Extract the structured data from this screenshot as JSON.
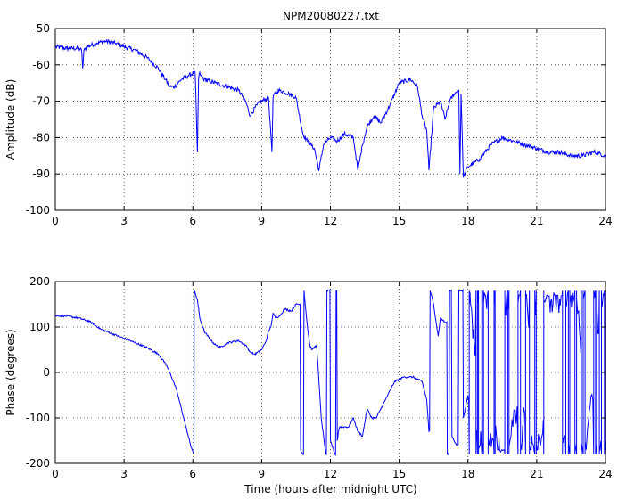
{
  "chart_data": [
    {
      "type": "line",
      "title": "NPM20080227.txt",
      "xlabel": "",
      "ylabel": "Amplitude (dB)",
      "xlim": [
        0,
        24
      ],
      "ylim": [
        -100,
        -50
      ],
      "xticks": [
        "0",
        "3",
        "6",
        "9",
        "12",
        "15",
        "18",
        "21",
        "24"
      ],
      "yticks": [
        "-50",
        "-60",
        "-70",
        "-80",
        "-90",
        "-100"
      ],
      "grid": true,
      "color": "#0000ff",
      "noise": 0.6,
      "series": [
        {
          "x": [
            0,
            0.5,
            1.0,
            1.15,
            1.2,
            1.25,
            1.4,
            1.8,
            2.2,
            2.6,
            3.0,
            3.5,
            4.0,
            4.5,
            4.8,
            5.0,
            5.2,
            5.5,
            5.8,
            6.1,
            6.2,
            6.25,
            6.3,
            6.35,
            6.5,
            7.0,
            7.5,
            8.0,
            8.3,
            8.5,
            8.8,
            9.0,
            9.3,
            9.45,
            9.5,
            9.55,
            9.8,
            10.2,
            10.5,
            10.8,
            11.0,
            11.3,
            11.5,
            11.7,
            12.0,
            12.3,
            12.6,
            13.0,
            13.2,
            13.4,
            13.6,
            13.9,
            14.2,
            14.6,
            15.0,
            15.5,
            15.8,
            16.0,
            16.2,
            16.3,
            16.5,
            16.8,
            17.0,
            17.2,
            17.4,
            17.6,
            17.65,
            17.7,
            17.8,
            18.0,
            18.5,
            19.0,
            19.5,
            20.0,
            20.5,
            21.0,
            21.5,
            22.0,
            22.5,
            23.0,
            23.5,
            24.0
          ],
          "y": [
            -55,
            -55.5,
            -55.5,
            -56,
            -61,
            -56,
            -55,
            -54,
            -53.5,
            -54,
            -55,
            -56,
            -58,
            -61,
            -64,
            -66,
            -66,
            -64,
            -63,
            -62,
            -84,
            -64,
            -62,
            -63,
            -64,
            -65,
            -66,
            -67,
            -70,
            -74,
            -71,
            -70,
            -69,
            -84,
            -69,
            -68,
            -67,
            -68,
            -69,
            -79,
            -81,
            -83,
            -89,
            -82,
            -80,
            -81,
            -79,
            -80,
            -89,
            -82,
            -77,
            -74,
            -76,
            -71,
            -65,
            -64,
            -66,
            -74,
            -78,
            -89,
            -72,
            -70,
            -75,
            -70,
            -68,
            -67,
            -90,
            -68,
            -91,
            -88,
            -86,
            -82,
            -80,
            -81,
            -82,
            -83,
            -84,
            -84,
            -85,
            -85,
            -84,
            -85
          ]
        }
      ]
    },
    {
      "type": "line",
      "title": "",
      "xlabel": "Time (hours after midnight UTC)",
      "ylabel": "Phase (degrees)",
      "xlim": [
        0,
        24
      ],
      "ylim": [
        -200,
        200
      ],
      "xticks": [
        "0",
        "3",
        "6",
        "9",
        "12",
        "15",
        "18",
        "21",
        "24"
      ],
      "yticks": [
        "200",
        "100",
        "0",
        "-100",
        "-200"
      ],
      "grid": true,
      "color": "#0000ff",
      "noise": 2,
      "series": [
        {
          "x": [
            0,
            0.5,
            1.0,
            1.5,
            2.0,
            2.5,
            3.0,
            3.5,
            4.0,
            4.5,
            4.8,
            5.0,
            5.3,
            5.6,
            5.9,
            6.05,
            6.06,
            6.2,
            6.3,
            6.5,
            6.8,
            7.0,
            7.2,
            7.5,
            8.0,
            8.3,
            8.5,
            8.7,
            9.0,
            9.2,
            9.3,
            9.4,
            9.5,
            9.6,
            9.8,
            10.0,
            10.3,
            10.5,
            10.7,
            10.8,
            10.85,
            10.9,
            11.0,
            11.1,
            11.2,
            11.4,
            11.6,
            11.8,
            11.85,
            12.0,
            12.2,
            12.25,
            12.3,
            12.35,
            12.4,
            12.6,
            12.8,
            13.0,
            13.2,
            13.4,
            13.6,
            13.8,
            14.0,
            14.4,
            14.8,
            15.2,
            15.6,
            16.0,
            16.2,
            16.3,
            16.35,
            16.5,
            16.7,
            16.8,
            17.0,
            17.1,
            17.2,
            17.3,
            17.5,
            17.6,
            17.8,
            18.0
          ],
          "y": [
            125,
            124,
            120,
            112,
            95,
            85,
            75,
            65,
            55,
            40,
            20,
            0,
            -40,
            -100,
            -160,
            -180,
            180,
            160,
            120,
            90,
            70,
            60,
            55,
            65,
            70,
            60,
            45,
            40,
            50,
            70,
            90,
            100,
            130,
            120,
            125,
            140,
            135,
            150,
            -170,
            -180,
            180,
            150,
            100,
            60,
            50,
            60,
            -100,
            -180,
            180,
            -150,
            -180,
            180,
            -150,
            -130,
            -120,
            -120,
            -120,
            -100,
            -130,
            -140,
            -80,
            -100,
            -100,
            -60,
            -20,
            -10,
            -10,
            -20,
            -60,
            -130,
            180,
            150,
            80,
            120,
            110,
            -180,
            180,
            -140,
            -160,
            180,
            -100,
            -50
          ]
        }
      ]
    }
  ]
}
